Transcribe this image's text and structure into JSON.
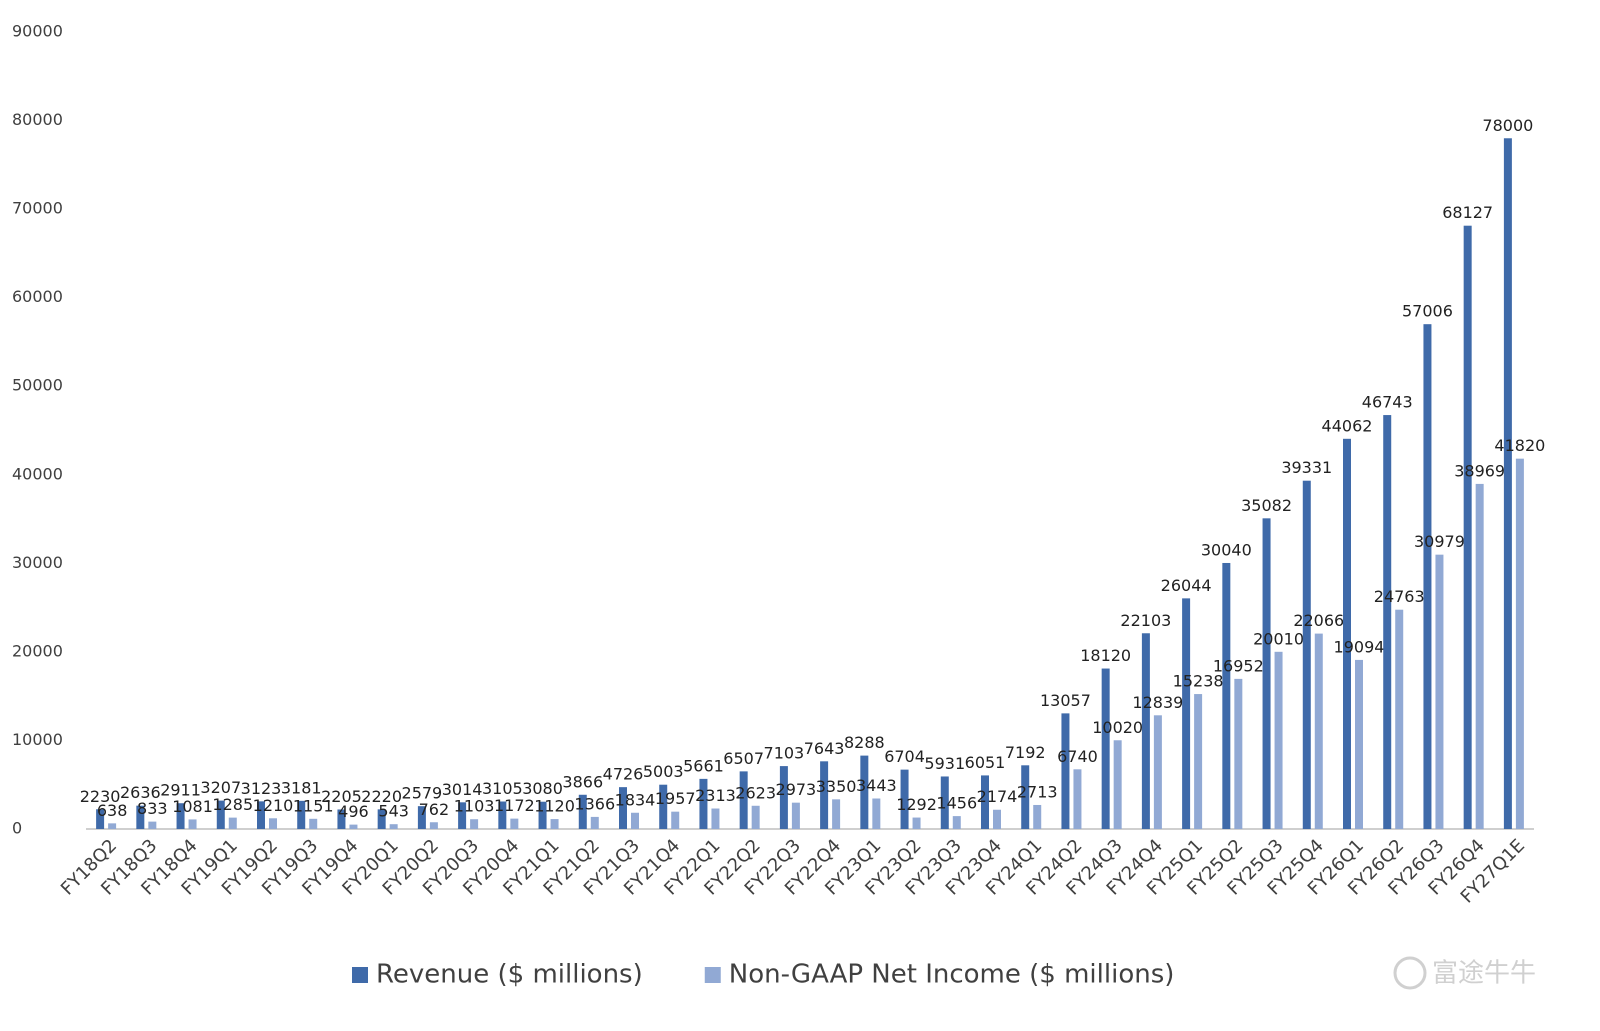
{
  "chart_data": {
    "type": "bar",
    "categories": [
      "FY18Q2",
      "FY18Q3",
      "FY18Q4",
      "FY19Q1",
      "FY19Q2",
      "FY19Q3",
      "FY19Q4",
      "FY20Q1",
      "FY20Q2",
      "FY20Q3",
      "FY20Q4",
      "FY21Q1",
      "FY21Q2",
      "FY21Q3",
      "FY21Q4",
      "FY22Q1",
      "FY22Q2",
      "FY22Q3",
      "FY22Q4",
      "FY23Q1",
      "FY23Q2",
      "FY23Q3",
      "FY23Q4",
      "FY24Q1",
      "FY24Q2",
      "FY24Q3",
      "FY24Q4",
      "FY25Q1",
      "FY25Q2",
      "FY25Q3",
      "FY25Q4",
      "FY26Q1",
      "FY26Q2",
      "FY26Q3",
      "FY26Q4",
      "FY27Q1E"
    ],
    "series": [
      {
        "name": "Revenue ($ millions)",
        "color": "#3f6aa9",
        "values": [
          2230,
          2636,
          2911,
          3207,
          3123,
          3181,
          2205,
          2220,
          2579,
          3014,
          3105,
          3080,
          3866,
          4726,
          5003,
          5661,
          6507,
          7103,
          7643,
          8288,
          6704,
          5931,
          6051,
          7192,
          13057,
          18120,
          22103,
          26044,
          30040,
          35082,
          39331,
          44062,
          46743,
          57006,
          68127,
          78000
        ]
      },
      {
        "name": "Non-GAAP Net Income ($ millions)",
        "color": "#91a9d4",
        "values": [
          638,
          833,
          1081,
          1285,
          1210,
          1151,
          496,
          543,
          762,
          1103,
          1172,
          1120,
          1366,
          1834,
          1957,
          2313,
          2623,
          2973,
          3350,
          3443,
          1292,
          1456,
          2174,
          2713,
          6740,
          10020,
          12839,
          15238,
          16952,
          20010,
          22066,
          19094,
          24763,
          30979,
          38969,
          41820
        ]
      }
    ],
    "ylim": [
      0,
      90000
    ],
    "yticks": [
      0,
      10000,
      20000,
      30000,
      40000,
      50000,
      60000,
      70000,
      80000,
      90000
    ],
    "grid": false,
    "legend": "bottom",
    "watermark": "富途牛牛"
  }
}
